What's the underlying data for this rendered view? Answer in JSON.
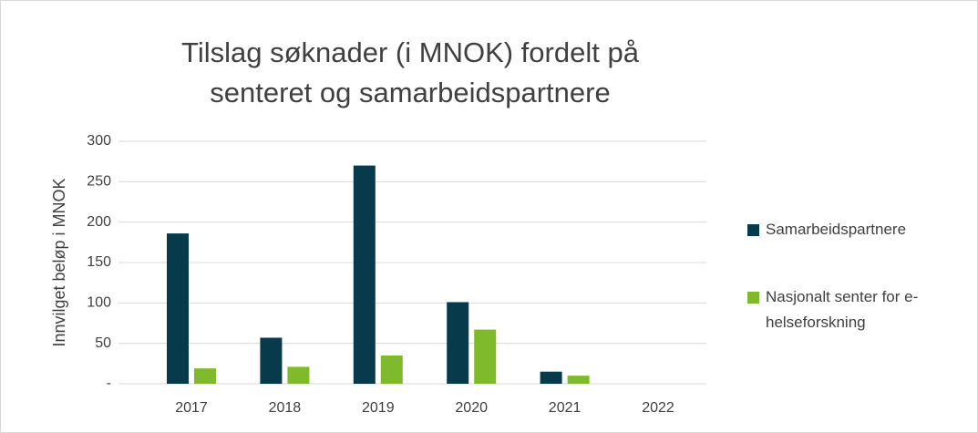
{
  "chart_data": {
    "type": "bar",
    "title": "Tilslag søknader (i MNOK) fordelt på senteret og samarbeidspartnere",
    "y_label": "Innvilget beløp i MNOK",
    "categories": [
      "2017",
      "2018",
      "2019",
      "2020",
      "2021",
      "2022"
    ],
    "series": [
      {
        "name": "Samarbeidspartnere",
        "color": "#073b4c",
        "values": [
          186,
          57,
          270,
          101,
          15,
          0
        ]
      },
      {
        "name": "Nasjonalt senter for e-helseforskning",
        "color": "#7fba2c",
        "values": [
          19,
          21,
          35,
          67,
          10,
          0
        ]
      }
    ],
    "ylim": [
      0,
      300
    ],
    "yticks": [
      {
        "value": 0,
        "label": "-"
      },
      50,
      100,
      150,
      200,
      250,
      300
    ],
    "grid": true,
    "legend": "right"
  }
}
